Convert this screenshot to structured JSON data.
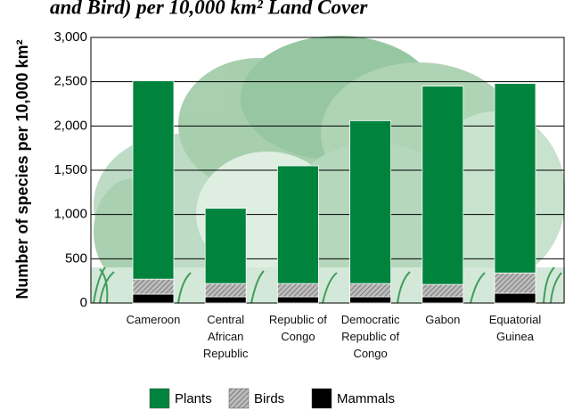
{
  "chart_data": {
    "type": "stacked_bar",
    "title": "and Bird) per 10,000 km² Land Cover",
    "y_label": "Number of species per 10,000 km²",
    "categories": [
      "Cameroon",
      "Central African Republic",
      "Republic of Congo",
      "Democratic Republic of Congo",
      "Gabon",
      "Equatorial Guinea"
    ],
    "series": [
      {
        "name": "Plants",
        "color": "#00843d",
        "values": [
          2240,
          850,
          1330,
          1840,
          2240,
          2140
        ]
      },
      {
        "name": "Birds",
        "color": "#9a9a9a",
        "values": [
          170,
          150,
          150,
          150,
          140,
          230
        ]
      },
      {
        "name": "Mammals",
        "color": "#000000",
        "values": [
          100,
          70,
          70,
          70,
          70,
          110
        ]
      }
    ],
    "ylim": [
      0,
      3000
    ],
    "yticks": [
      0,
      500,
      {
        "value": 1000,
        "label": "1,000"
      },
      {
        "value": 1500,
        "label": "1,500"
      },
      {
        "value": 2000,
        "label": "2,000"
      },
      {
        "value": 2500,
        "label": "2,500"
      },
      {
        "value": 3000,
        "label": "3,000"
      }
    ],
    "grid": true
  }
}
